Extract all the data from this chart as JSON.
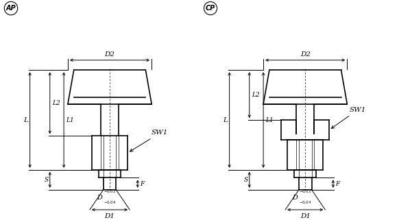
{
  "bg_color": "#ffffff",
  "line_color": "#000000",
  "fig_width": 5.82,
  "fig_height": 3.21,
  "dpi": 100,
  "label_AP": "AP",
  "label_CP": "CP",
  "label_D2": "D2",
  "label_D1": "D1",
  "label_D": "D",
  "label_SW1": "SW1",
  "label_L": "L",
  "label_L1": "L1",
  "label_L2": "L2",
  "label_S": "S",
  "label_F": "F"
}
